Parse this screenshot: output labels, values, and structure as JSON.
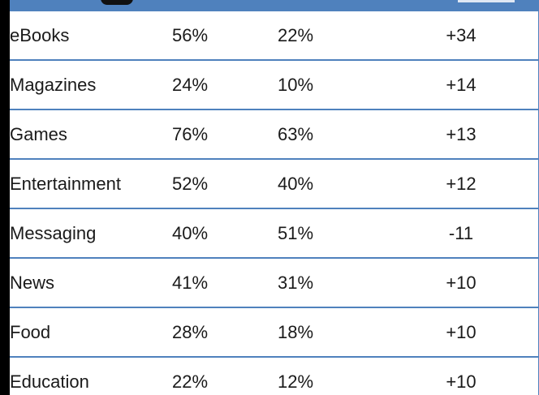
{
  "table": {
    "rows": [
      {
        "category": "eBooks",
        "a": "56%",
        "b": "22%",
        "diff": "+34"
      },
      {
        "category": "Magazines",
        "a": "24%",
        "b": "10%",
        "diff": "+14"
      },
      {
        "category": "Games",
        "a": "76%",
        "b": "63%",
        "diff": "+13"
      },
      {
        "category": "Entertainment",
        "a": "52%",
        "b": "40%",
        "diff": "+12"
      },
      {
        "category": "Messaging",
        "a": "40%",
        "b": "51%",
        "diff": "-11"
      },
      {
        "category": "News",
        "a": "41%",
        "b": "31%",
        "diff": "+10"
      },
      {
        "category": "Food",
        "a": "28%",
        "b": "18%",
        "diff": "+10"
      },
      {
        "category": "Education",
        "a": "22%",
        "b": "12%",
        "diff": "+10"
      }
    ]
  },
  "colors": {
    "header": "#4f81bd",
    "border": "#4f81bd",
    "background": "#ffffff"
  }
}
